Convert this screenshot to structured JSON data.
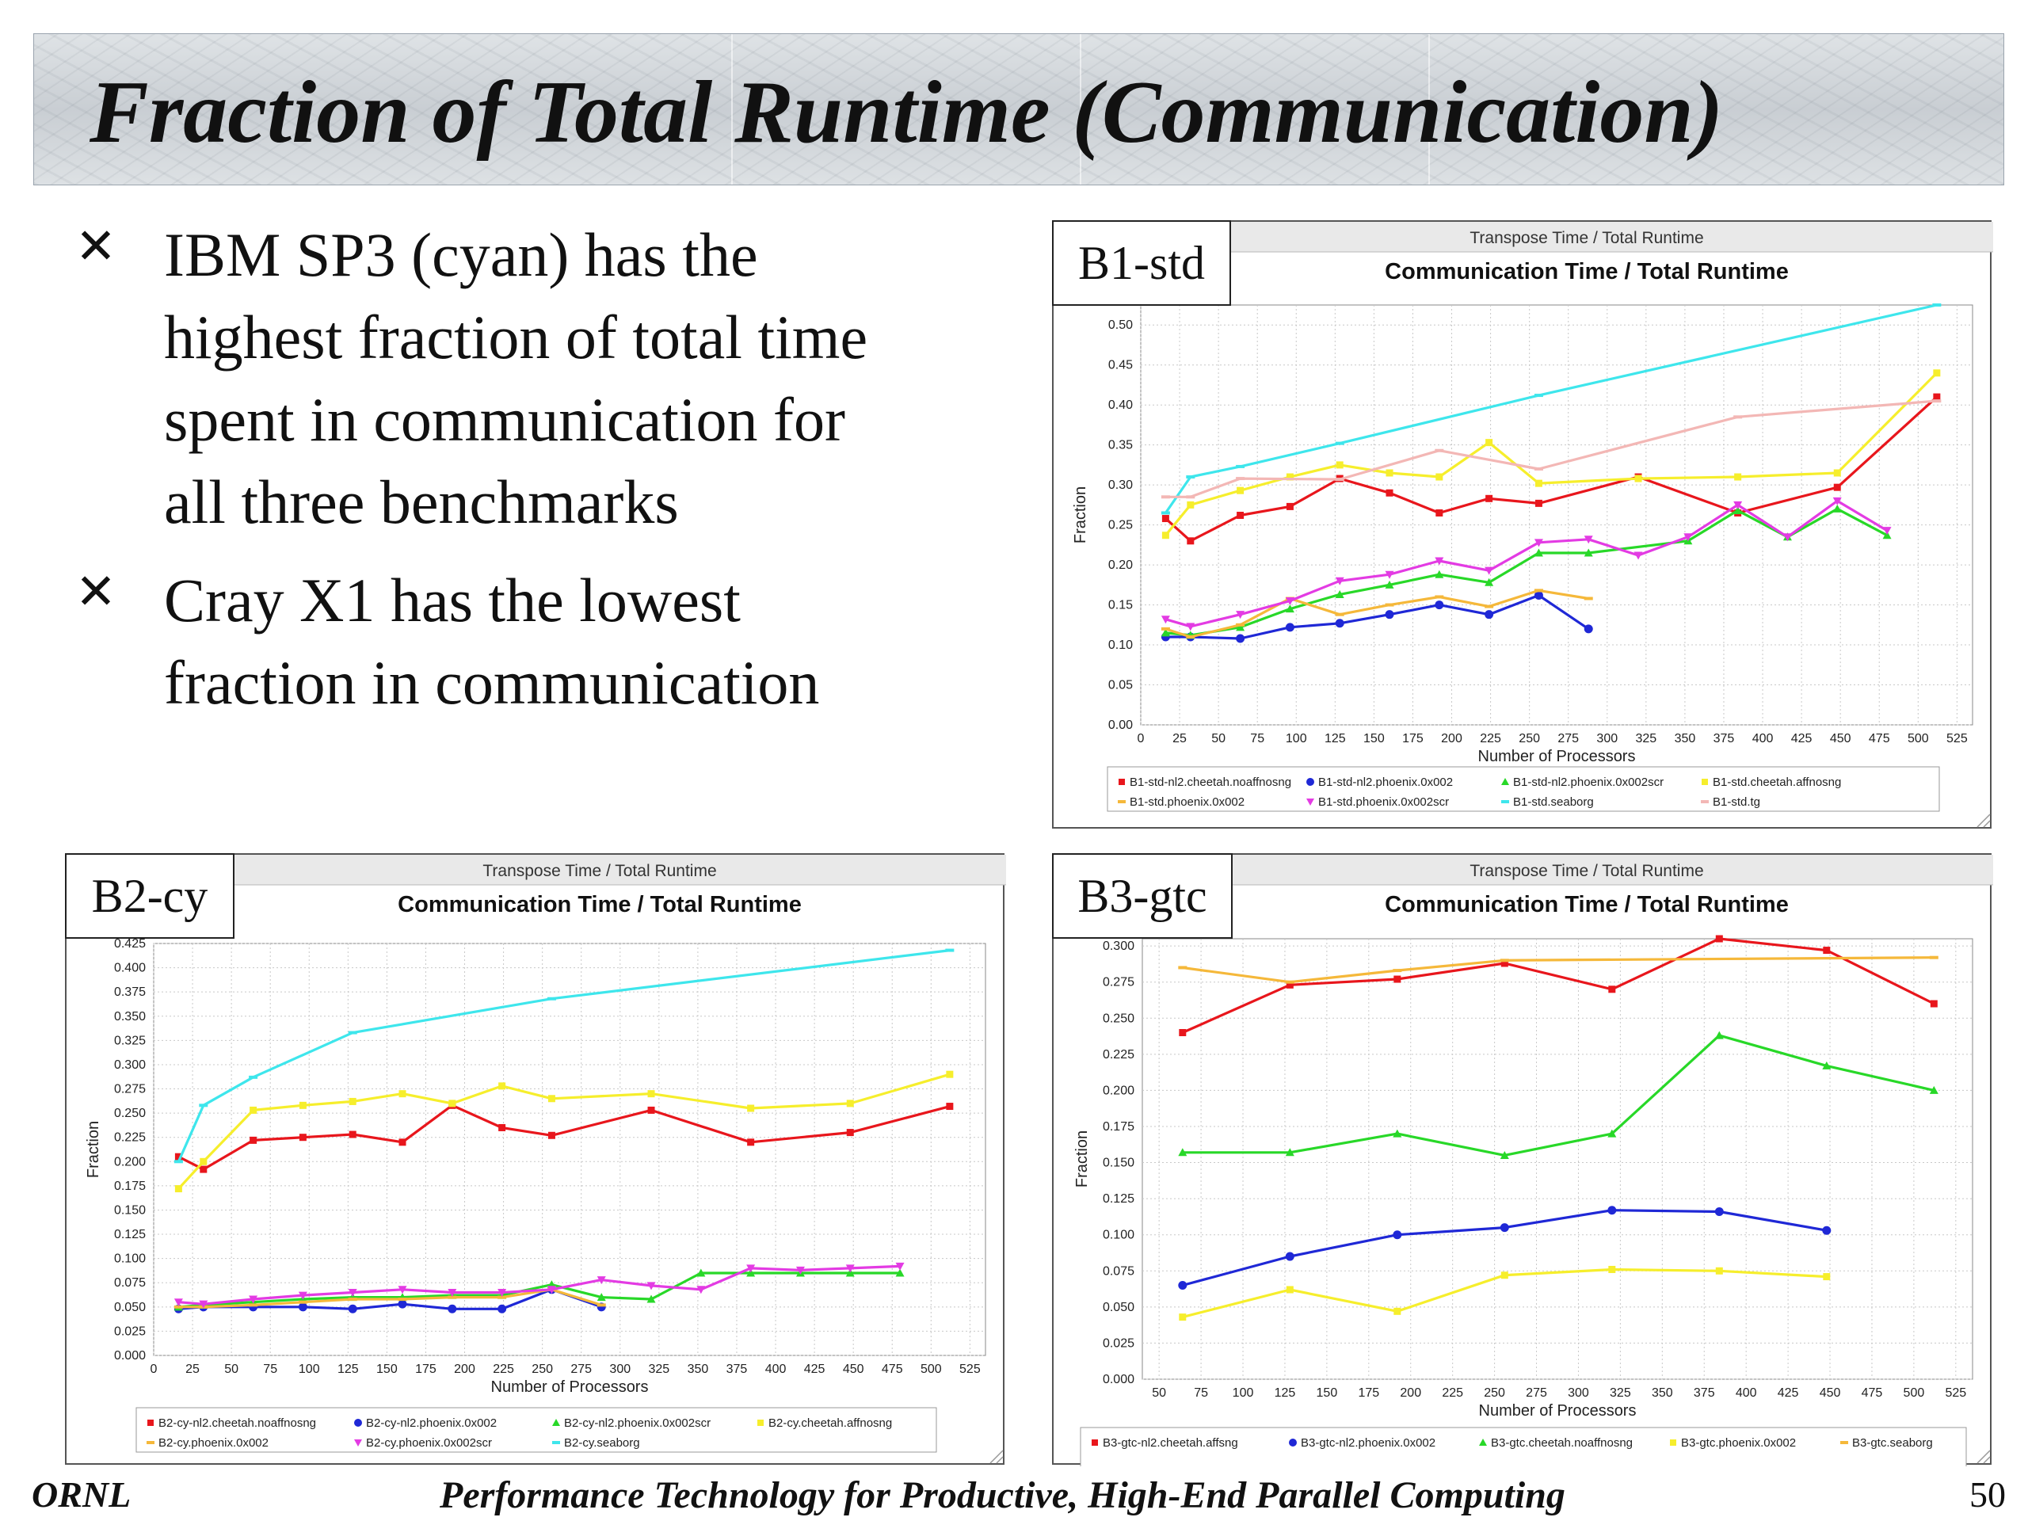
{
  "title": "Fraction of Total Runtime (Communication)",
  "bullets": [
    {
      "icon": "x-bullet-icon",
      "glyph": "✕",
      "lines": [
        "IBM SP3 (cyan) has the",
        "highest fraction of total time",
        "spent in communication for",
        "all three benchmarks"
      ]
    },
    {
      "icon": "x-bullet-icon",
      "glyph": "✕",
      "lines": [
        "Cray X1 has the lowest",
        "fraction in communication"
      ]
    }
  ],
  "footer": {
    "left": "ORNL",
    "center": "Performance Technology for Productive, High-End Parallel Computing",
    "page": "50"
  },
  "chart_data": [
    {
      "id": "b1",
      "tag": "B1-std",
      "type": "line",
      "window_title": "Transpose Time / Total Runtime",
      "title": "Communication Time / Total Runtime",
      "xlabel": "Number of Processors",
      "ylabel": "Fraction",
      "xlim": [
        0,
        535
      ],
      "ylim": [
        0,
        0.525
      ],
      "xticks": [
        0,
        25,
        50,
        75,
        100,
        125,
        150,
        175,
        200,
        225,
        250,
        275,
        300,
        325,
        350,
        375,
        400,
        425,
        450,
        475,
        500,
        525
      ],
      "yticks": [
        0,
        0.05,
        0.1,
        0.15,
        0.2,
        0.25,
        0.3,
        0.35,
        0.4,
        0.45,
        0.5
      ],
      "ydecimals": 2,
      "grid": true,
      "legend_position": "bottom",
      "series": [
        {
          "name": "B1-std-nl2.cheetah.noaffnosng",
          "color": "#e8161c",
          "marker": "square",
          "x": [
            16,
            32,
            64,
            96,
            128,
            160,
            192,
            224,
            256,
            320,
            384,
            448,
            512
          ],
          "y": [
            0.258,
            0.23,
            0.262,
            0.273,
            0.308,
            0.29,
            0.265,
            0.283,
            0.277,
            0.31,
            0.265,
            0.297,
            0.41
          ]
        },
        {
          "name": "B1-std-nl2.phoenix.0x002",
          "color": "#1f28d6",
          "marker": "circle",
          "x": [
            16,
            32,
            64,
            96,
            128,
            160,
            192,
            224,
            256,
            288
          ],
          "y": [
            0.11,
            0.11,
            0.108,
            0.122,
            0.127,
            0.138,
            0.15,
            0.138,
            0.162,
            0.12
          ]
        },
        {
          "name": "B1-std-nl2.phoenix.0x002scr",
          "color": "#28d828",
          "marker": "triangle-up",
          "x": [
            16,
            32,
            64,
            96,
            128,
            160,
            192,
            224,
            256,
            288,
            352,
            384,
            416,
            448,
            480
          ],
          "y": [
            0.115,
            0.112,
            0.122,
            0.145,
            0.163,
            0.175,
            0.188,
            0.178,
            0.215,
            0.215,
            0.23,
            0.268,
            0.235,
            0.27,
            0.237
          ]
        },
        {
          "name": "B1-std.cheetah.affnosng",
          "color": "#f6ee2c",
          "marker": "square",
          "x": [
            16,
            32,
            64,
            96,
            128,
            160,
            192,
            224,
            256,
            320,
            384,
            448,
            512
          ],
          "y": [
            0.237,
            0.275,
            0.293,
            0.31,
            0.325,
            0.315,
            0.31,
            0.353,
            0.302,
            0.308,
            0.31,
            0.315,
            0.44
          ]
        },
        {
          "name": "B1-std.phoenix.0x002",
          "color": "#f5b83a",
          "marker": "dash",
          "x": [
            16,
            32,
            64,
            96,
            128,
            160,
            192,
            224,
            256,
            288
          ],
          "y": [
            0.12,
            0.11,
            0.125,
            0.158,
            0.138,
            0.15,
            0.16,
            0.148,
            0.168,
            0.158
          ]
        },
        {
          "name": "B1-std.phoenix.0x002scr",
          "color": "#e33be3",
          "marker": "triangle-down",
          "x": [
            16,
            32,
            64,
            96,
            128,
            160,
            192,
            224,
            256,
            288,
            320,
            352,
            384,
            416,
            448,
            480
          ],
          "y": [
            0.132,
            0.123,
            0.138,
            0.155,
            0.18,
            0.188,
            0.205,
            0.193,
            0.228,
            0.232,
            0.212,
            0.235,
            0.275,
            0.235,
            0.28,
            0.243
          ]
        },
        {
          "name": "B1-std.seaborg",
          "color": "#3ee6ec",
          "marker": "dash",
          "x": [
            16,
            32,
            64,
            128,
            256,
            512
          ],
          "y": [
            0.265,
            0.31,
            0.323,
            0.352,
            0.412,
            0.525
          ]
        },
        {
          "name": "B1-std.tg",
          "color": "#f3b7b5",
          "marker": "dash",
          "x": [
            16,
            32,
            64,
            128,
            192,
            256,
            384,
            512
          ],
          "y": [
            0.285,
            0.285,
            0.308,
            0.307,
            0.343,
            0.32,
            0.385,
            0.405
          ]
        }
      ]
    },
    {
      "id": "b2",
      "tag": "B2-cy",
      "type": "line",
      "window_title": "Transpose Time / Total Runtime",
      "title": "Communication Time / Total Runtime",
      "xlabel": "Number of Processors",
      "ylabel": "Fraction",
      "xlim": [
        0,
        535
      ],
      "ylim": [
        0,
        0.425
      ],
      "xticks": [
        0,
        25,
        50,
        75,
        100,
        125,
        150,
        175,
        200,
        225,
        250,
        275,
        300,
        325,
        350,
        375,
        400,
        425,
        450,
        475,
        500,
        525
      ],
      "yticks": [
        0,
        0.025,
        0.05,
        0.075,
        0.1,
        0.125,
        0.15,
        0.175,
        0.2,
        0.225,
        0.25,
        0.275,
        0.3,
        0.325,
        0.35,
        0.375,
        0.4,
        0.425
      ],
      "ydecimals": 3,
      "grid": true,
      "legend_position": "bottom",
      "series": [
        {
          "name": "B2-cy-nl2.cheetah.noaffnosng",
          "color": "#e8161c",
          "marker": "square",
          "x": [
            16,
            32,
            64,
            96,
            128,
            160,
            192,
            224,
            256,
            320,
            384,
            448,
            512
          ],
          "y": [
            0.205,
            0.192,
            0.222,
            0.225,
            0.228,
            0.22,
            0.258,
            0.235,
            0.227,
            0.253,
            0.22,
            0.23,
            0.257
          ]
        },
        {
          "name": "B2-cy-nl2.phoenix.0x002",
          "color": "#1f28d6",
          "marker": "circle",
          "x": [
            16,
            32,
            64,
            96,
            128,
            160,
            192,
            224,
            256,
            288
          ],
          "y": [
            0.048,
            0.05,
            0.05,
            0.05,
            0.048,
            0.053,
            0.048,
            0.048,
            0.068,
            0.05
          ]
        },
        {
          "name": "B2-cy-nl2.phoenix.0x002scr",
          "color": "#28d828",
          "marker": "triangle-up",
          "x": [
            16,
            32,
            64,
            96,
            128,
            160,
            192,
            224,
            256,
            288,
            320,
            352,
            384,
            416,
            448,
            480
          ],
          "y": [
            0.05,
            0.052,
            0.055,
            0.058,
            0.06,
            0.06,
            0.062,
            0.062,
            0.073,
            0.06,
            0.058,
            0.085,
            0.085,
            0.085,
            0.085,
            0.085
          ]
        },
        {
          "name": "B2-cy.cheetah.affnosng",
          "color": "#f6ee2c",
          "marker": "square",
          "x": [
            16,
            32,
            64,
            96,
            128,
            160,
            192,
            224,
            256,
            320,
            384,
            448,
            512
          ],
          "y": [
            0.172,
            0.2,
            0.253,
            0.258,
            0.262,
            0.27,
            0.26,
            0.278,
            0.265,
            0.27,
            0.255,
            0.26,
            0.29
          ]
        },
        {
          "name": "B2-cy.phoenix.0x002",
          "color": "#f5b83a",
          "marker": "dash",
          "x": [
            16,
            32,
            64,
            96,
            128,
            160,
            192,
            224,
            256,
            288
          ],
          "y": [
            0.05,
            0.05,
            0.052,
            0.055,
            0.058,
            0.058,
            0.06,
            0.06,
            0.068,
            0.052
          ]
        },
        {
          "name": "B2-cy.phoenix.0x002scr",
          "color": "#e33be3",
          "marker": "triangle-down",
          "x": [
            16,
            32,
            64,
            96,
            128,
            160,
            192,
            224,
            256,
            288,
            320,
            352,
            384,
            416,
            448,
            480
          ],
          "y": [
            0.055,
            0.053,
            0.058,
            0.062,
            0.065,
            0.068,
            0.065,
            0.065,
            0.068,
            0.078,
            0.072,
            0.068,
            0.09,
            0.088,
            0.09,
            0.092
          ]
        },
        {
          "name": "B2-cy.seaborg",
          "color": "#3ee6ec",
          "marker": "dash",
          "x": [
            16,
            32,
            64,
            128,
            256,
            512
          ],
          "y": [
            0.2,
            0.258,
            0.287,
            0.333,
            0.368,
            0.418
          ]
        }
      ]
    },
    {
      "id": "b3",
      "tag": "B3-gtc",
      "type": "line",
      "window_title": "Transpose Time / Total Runtime",
      "title": "Communication Time / Total Runtime",
      "xlabel": "Number of Processors",
      "ylabel": "Fraction",
      "xlim": [
        40,
        535
      ],
      "ylim": [
        0,
        0.305
      ],
      "xticks": [
        50,
        75,
        100,
        125,
        150,
        175,
        200,
        225,
        250,
        275,
        300,
        325,
        350,
        375,
        400,
        425,
        450,
        475,
        500,
        525
      ],
      "yticks": [
        0,
        0.025,
        0.05,
        0.075,
        0.1,
        0.125,
        0.15,
        0.175,
        0.2,
        0.225,
        0.25,
        0.275,
        0.3
      ],
      "ydecimals": 3,
      "grid": true,
      "legend_position": "bottom",
      "series": [
        {
          "name": "B3-gtc-nl2.cheetah.affsng",
          "color": "#e8161c",
          "marker": "square",
          "x": [
            64,
            128,
            192,
            256,
            320,
            384,
            448,
            512
          ],
          "y": [
            0.24,
            0.273,
            0.277,
            0.288,
            0.27,
            0.305,
            0.297,
            0.26
          ]
        },
        {
          "name": "B3-gtc-nl2.phoenix.0x002",
          "color": "#1f28d6",
          "marker": "circle",
          "x": [
            64,
            128,
            192,
            256,
            320,
            384,
            448
          ],
          "y": [
            0.065,
            0.085,
            0.1,
            0.105,
            0.117,
            0.116,
            0.103
          ]
        },
        {
          "name": "B3-gtc.cheetah.noaffnosng",
          "color": "#28d828",
          "marker": "triangle-up",
          "x": [
            64,
            128,
            192,
            256,
            320,
            384,
            448,
            512
          ],
          "y": [
            0.157,
            0.157,
            0.17,
            0.155,
            0.17,
            0.238,
            0.217,
            0.2
          ]
        },
        {
          "name": "B3-gtc.phoenix.0x002",
          "color": "#f6ee2c",
          "marker": "square",
          "x": [
            64,
            128,
            192,
            256,
            320,
            384,
            448
          ],
          "y": [
            0.043,
            0.062,
            0.047,
            0.072,
            0.076,
            0.075,
            0.071
          ]
        },
        {
          "name": "B3-gtc.seaborg",
          "color": "#f5b83a",
          "marker": "dash",
          "x": [
            64,
            128,
            192,
            256,
            512
          ],
          "y": [
            0.285,
            0.275,
            0.283,
            0.29,
            0.292
          ]
        }
      ]
    }
  ]
}
